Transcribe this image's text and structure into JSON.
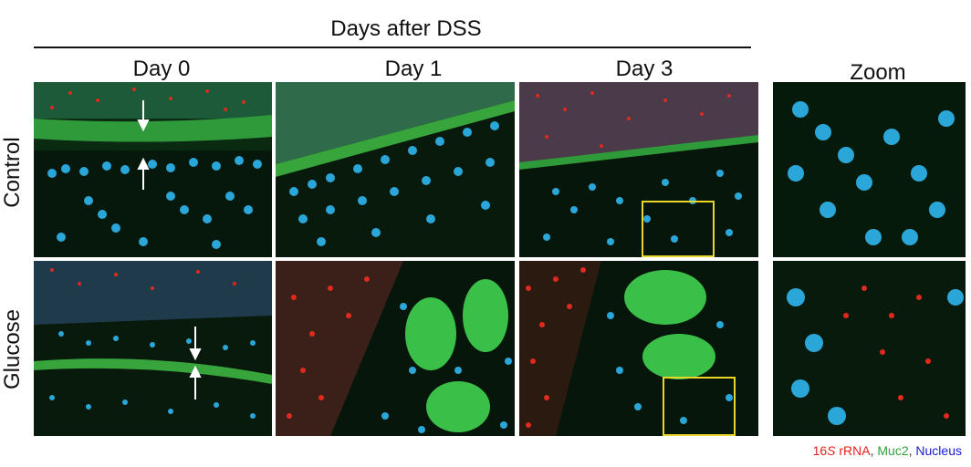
{
  "figure": {
    "title": "Days after DSS",
    "columns": [
      "Day 0",
      "Day 1",
      "Day 3",
      "Zoom"
    ],
    "rows": [
      "Control",
      "Glucose"
    ],
    "legend": {
      "label_1_prefix": "16",
      "label_1_italic": "S",
      "label_1_suffix": " rRNA",
      "sep_1": ", ",
      "label_2": "Muc2",
      "sep_2": ", ",
      "label_3": "Nucleus"
    }
  },
  "colors": {
    "rRNA_red": "#e8201c",
    "muc2_green": "#2fa33a",
    "nucleus_blue": "#1a1ad6",
    "zoom_box_yellow": "#e8d62a"
  }
}
